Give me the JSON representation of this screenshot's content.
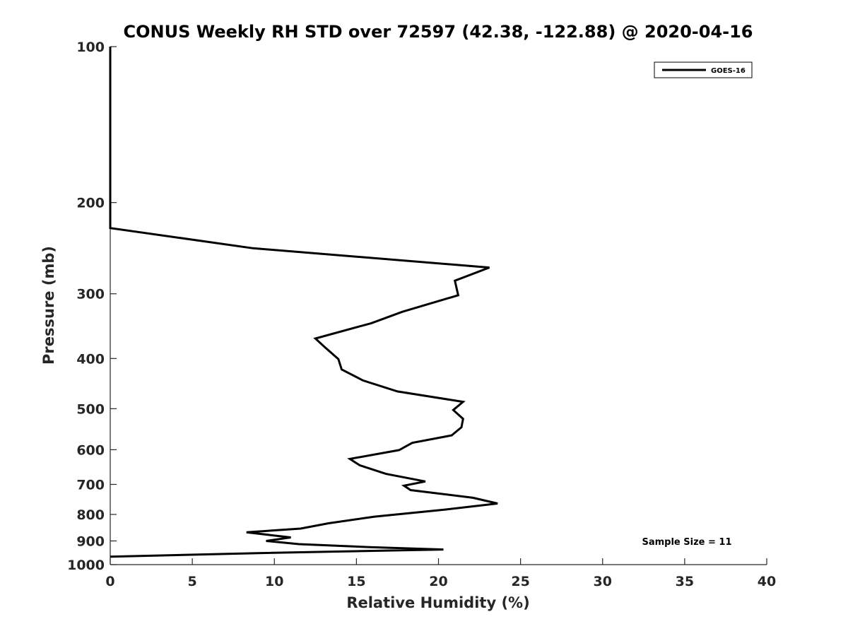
{
  "chart_data": {
    "type": "line",
    "title": "CONUS Weekly RH STD over 72597 (42.38, -122.88) @ 2020-04-16",
    "xlabel": "Relative Humidity (%)",
    "ylabel": "Pressure (mb)",
    "xlim": [
      0,
      40
    ],
    "ylim": [
      100,
      1000
    ],
    "y_scale": "log",
    "y_reversed": true,
    "x_ticks": [
      0,
      5,
      10,
      15,
      20,
      25,
      30,
      35,
      40
    ],
    "y_ticks": [
      100,
      200,
      300,
      400,
      500,
      600,
      700,
      800,
      900,
      1000
    ],
    "grid": false,
    "legend": {
      "position": "top-right",
      "entries": [
        "GOES-16"
      ]
    },
    "annotation": "Sample Size = 11",
    "line_color": "#000000",
    "series": [
      {
        "name": "GOES-16",
        "points": [
          [
            0,
            100
          ],
          [
            0,
            150
          ],
          [
            0,
            200
          ],
          [
            0,
            224
          ],
          [
            8.7,
            245
          ],
          [
            23.1,
            267
          ],
          [
            21.0,
            283
          ],
          [
            21.2,
            302
          ],
          [
            17.8,
            325
          ],
          [
            15.9,
            342
          ],
          [
            12.5,
            366
          ],
          [
            13.1,
            381
          ],
          [
            13.9,
            401
          ],
          [
            14.1,
            420
          ],
          [
            15.4,
            441
          ],
          [
            17.5,
            463
          ],
          [
            21.5,
            485
          ],
          [
            20.9,
            503
          ],
          [
            21.5,
            523
          ],
          [
            21.4,
            543
          ],
          [
            20.8,
            563
          ],
          [
            18.4,
            582
          ],
          [
            17.6,
            601
          ],
          [
            14.6,
            625
          ],
          [
            15.2,
            643
          ],
          [
            16.8,
            668
          ],
          [
            19.2,
            691
          ],
          [
            17.9,
            704
          ],
          [
            18.3,
            718
          ],
          [
            22.1,
            743
          ],
          [
            23.6,
            762
          ],
          [
            20.4,
            783
          ],
          [
            16.1,
            808
          ],
          [
            13.3,
            832
          ],
          [
            11.6,
            852
          ],
          [
            8.3,
            866
          ],
          [
            11.0,
            886
          ],
          [
            9.5,
            900
          ],
          [
            11.5,
            913
          ],
          [
            15.8,
            925
          ],
          [
            20.3,
            935
          ],
          [
            9.0,
            950
          ],
          [
            0,
            965
          ]
        ]
      }
    ]
  }
}
